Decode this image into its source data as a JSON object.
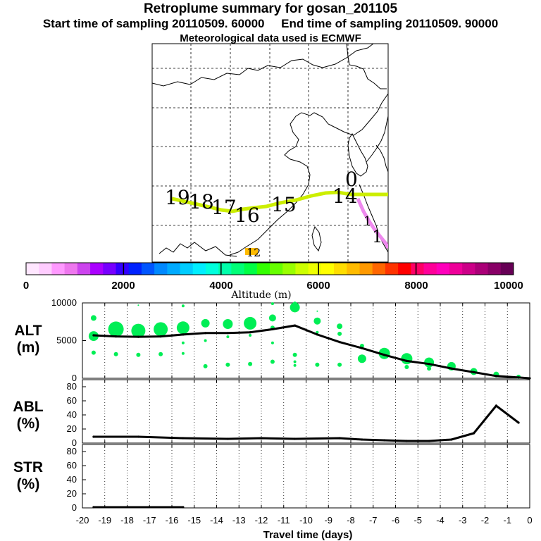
{
  "header": {
    "title": "Retroplume summary for gosan_201105",
    "subtitle": "Start time of sampling 20110509. 60000     End time of sampling 20110509. 90000",
    "met": "Meteorological data used is ECMWF"
  },
  "map": {
    "trajectory_color": "#ccee00",
    "labels": [
      "19",
      "18",
      "17",
      "16",
      "15",
      "14",
      "0",
      "1",
      "1",
      "12"
    ]
  },
  "colorbar": {
    "title": "Altitude (m)",
    "ticks": [
      "0",
      "2000",
      "4000",
      "6000",
      "8000",
      "10000"
    ],
    "colors": [
      "#ffe6ff",
      "#ffccff",
      "#ff99ff",
      "#ee77ee",
      "#cc44ee",
      "#aa00ff",
      "#7700ff",
      "#3300ff",
      "#0022ff",
      "#0055ff",
      "#0088ff",
      "#00aaff",
      "#00ccff",
      "#00eeff",
      "#00ffdd",
      "#00ffaa",
      "#00ff77",
      "#00ff44",
      "#33ff00",
      "#66ff00",
      "#99ff00",
      "#ccff00",
      "#eeff00",
      "#ffff00",
      "#ffdd00",
      "#ffbb00",
      "#ff9900",
      "#ff6600",
      "#ff3300",
      "#ff0000",
      "#ff0066",
      "#ff0099",
      "#ff00bb",
      "#ee0099",
      "#cc0088",
      "#aa0077",
      "#880066",
      "#660055"
    ]
  },
  "panels": [
    {
      "name": "ALT",
      "unit": "(m)"
    },
    {
      "name": "ABL",
      "unit": "(%)"
    },
    {
      "name": "STR",
      "unit": "(%)"
    }
  ],
  "chart_data": [
    {
      "type": "line",
      "title": "ALT",
      "ylabel": "(m)",
      "xlabel": "Travel time (days)",
      "xlim": [
        -20,
        0
      ],
      "ylim": [
        0,
        10000
      ],
      "yticks": [
        "0",
        "5000",
        "10000"
      ],
      "x": [
        -19.5,
        -18.5,
        -17.5,
        -16.5,
        -15.5,
        -14.5,
        -13.5,
        -12.5,
        -11.5,
        -10.5,
        -9.5,
        -8.5,
        -7.5,
        -6.5,
        -5.5,
        -4.5,
        -3.5,
        -2.5,
        -1.5,
        -0.5,
        0
      ],
      "values": [
        5700,
        5550,
        5500,
        5550,
        5800,
        6000,
        6000,
        6100,
        6500,
        7000,
        5800,
        4800,
        4000,
        3100,
        2300,
        1900,
        1300,
        800,
        300,
        100,
        0
      ],
      "bubble_color": "#00ee55",
      "bubbles": [
        {
          "x": -19.5,
          "y": 8000,
          "s": 4
        },
        {
          "x": -19.5,
          "y": 5600,
          "s": 7
        },
        {
          "x": -19.5,
          "y": 3400,
          "s": 3
        },
        {
          "x": -18.5,
          "y": 6500,
          "s": 11
        },
        {
          "x": -18.5,
          "y": 3200,
          "s": 3
        },
        {
          "x": -17.5,
          "y": 6300,
          "s": 10
        },
        {
          "x": -17.5,
          "y": 3100,
          "s": 3
        },
        {
          "x": -17.5,
          "y": 9700,
          "s": 1
        },
        {
          "x": -16.5,
          "y": 6500,
          "s": 10
        },
        {
          "x": -16.5,
          "y": 3200,
          "s": 3
        },
        {
          "x": -15.5,
          "y": 6700,
          "s": 9
        },
        {
          "x": -15.5,
          "y": 9600,
          "s": 2
        },
        {
          "x": -15.5,
          "y": 4700,
          "s": 2
        },
        {
          "x": -15.5,
          "y": 3300,
          "s": 2
        },
        {
          "x": -14.5,
          "y": 7300,
          "s": 6
        },
        {
          "x": -14.5,
          "y": 1600,
          "s": 3
        },
        {
          "x": -14.5,
          "y": 5000,
          "s": 2
        },
        {
          "x": -13.5,
          "y": 7200,
          "s": 7
        },
        {
          "x": -13.5,
          "y": 5500,
          "s": 2
        },
        {
          "x": -13.5,
          "y": 1800,
          "s": 3
        },
        {
          "x": -12.5,
          "y": 7300,
          "s": 9
        },
        {
          "x": -12.5,
          "y": 5700,
          "s": 2
        },
        {
          "x": -12.5,
          "y": 1900,
          "s": 3
        },
        {
          "x": -11.5,
          "y": 8000,
          "s": 5
        },
        {
          "x": -11.5,
          "y": 6700,
          "s": 3
        },
        {
          "x": -11.5,
          "y": 4700,
          "s": 2
        },
        {
          "x": -11.5,
          "y": 2200,
          "s": 3
        },
        {
          "x": -11.5,
          "y": 9900,
          "s": 2
        },
        {
          "x": -10.5,
          "y": 9400,
          "s": 7
        },
        {
          "x": -10.5,
          "y": 9900,
          "s": 3
        },
        {
          "x": -10.5,
          "y": 3100,
          "s": 3
        },
        {
          "x": -10.5,
          "y": 1700,
          "s": 2
        },
        {
          "x": -10.5,
          "y": 2200,
          "s": 2
        },
        {
          "x": -9.5,
          "y": 7600,
          "s": 5
        },
        {
          "x": -9.5,
          "y": 6100,
          "s": 2
        },
        {
          "x": -9.5,
          "y": 1800,
          "s": 3
        },
        {
          "x": -9.5,
          "y": 8900,
          "s": 1
        },
        {
          "x": -8.5,
          "y": 6900,
          "s": 4
        },
        {
          "x": -8.5,
          "y": 5900,
          "s": 3
        },
        {
          "x": -8.5,
          "y": 1800,
          "s": 3
        },
        {
          "x": -7.5,
          "y": 2600,
          "s": 6
        },
        {
          "x": -7.5,
          "y": 4300,
          "s": 3
        },
        {
          "x": -6.5,
          "y": 3300,
          "s": 8
        },
        {
          "x": -5.5,
          "y": 2600,
          "s": 8
        },
        {
          "x": -5.5,
          "y": 1500,
          "s": 3
        },
        {
          "x": -4.5,
          "y": 2100,
          "s": 7
        },
        {
          "x": -4.5,
          "y": 1300,
          "s": 3
        },
        {
          "x": -3.5,
          "y": 1600,
          "s": 6
        },
        {
          "x": -2.5,
          "y": 900,
          "s": 5
        },
        {
          "x": -1.5,
          "y": 500,
          "s": 4
        },
        {
          "x": -0.5,
          "y": 200,
          "s": 3
        }
      ]
    },
    {
      "type": "line",
      "title": "ABL",
      "ylabel": "(%)",
      "xlabel": "Travel time (days)",
      "xlim": [
        -20,
        0
      ],
      "ylim": [
        0,
        90
      ],
      "yticks": [
        "0",
        "20",
        "40",
        "60",
        "80"
      ],
      "x": [
        -19.5,
        -17.5,
        -15.5,
        -13.5,
        -12,
        -10.5,
        -8.5,
        -7.5,
        -6.5,
        -5.5,
        -4.5,
        -3.5,
        -2.5,
        -1.5,
        -0.5
      ],
      "values": [
        9,
        9,
        7,
        6,
        7,
        6,
        7,
        5,
        4,
        3,
        3,
        5,
        14,
        53,
        29
      ]
    },
    {
      "type": "line",
      "title": "STR",
      "ylabel": "(%)",
      "xlabel": "Travel time (days)",
      "xlim": [
        -20,
        0
      ],
      "ylim": [
        0,
        90
      ],
      "yticks": [
        "0",
        "20",
        "40",
        "60",
        "80"
      ],
      "xticks": [
        "-20",
        "-19",
        "-18",
        "-17",
        "-16",
        "-15",
        "-14",
        "-13",
        "-12",
        "-11",
        "-10",
        "-9",
        "-8",
        "-7",
        "-6",
        "-5",
        "-4",
        "-3",
        "-2",
        "-1",
        "0"
      ],
      "x": [
        -19.5,
        -15.5
      ],
      "values": [
        1,
        1
      ]
    }
  ]
}
